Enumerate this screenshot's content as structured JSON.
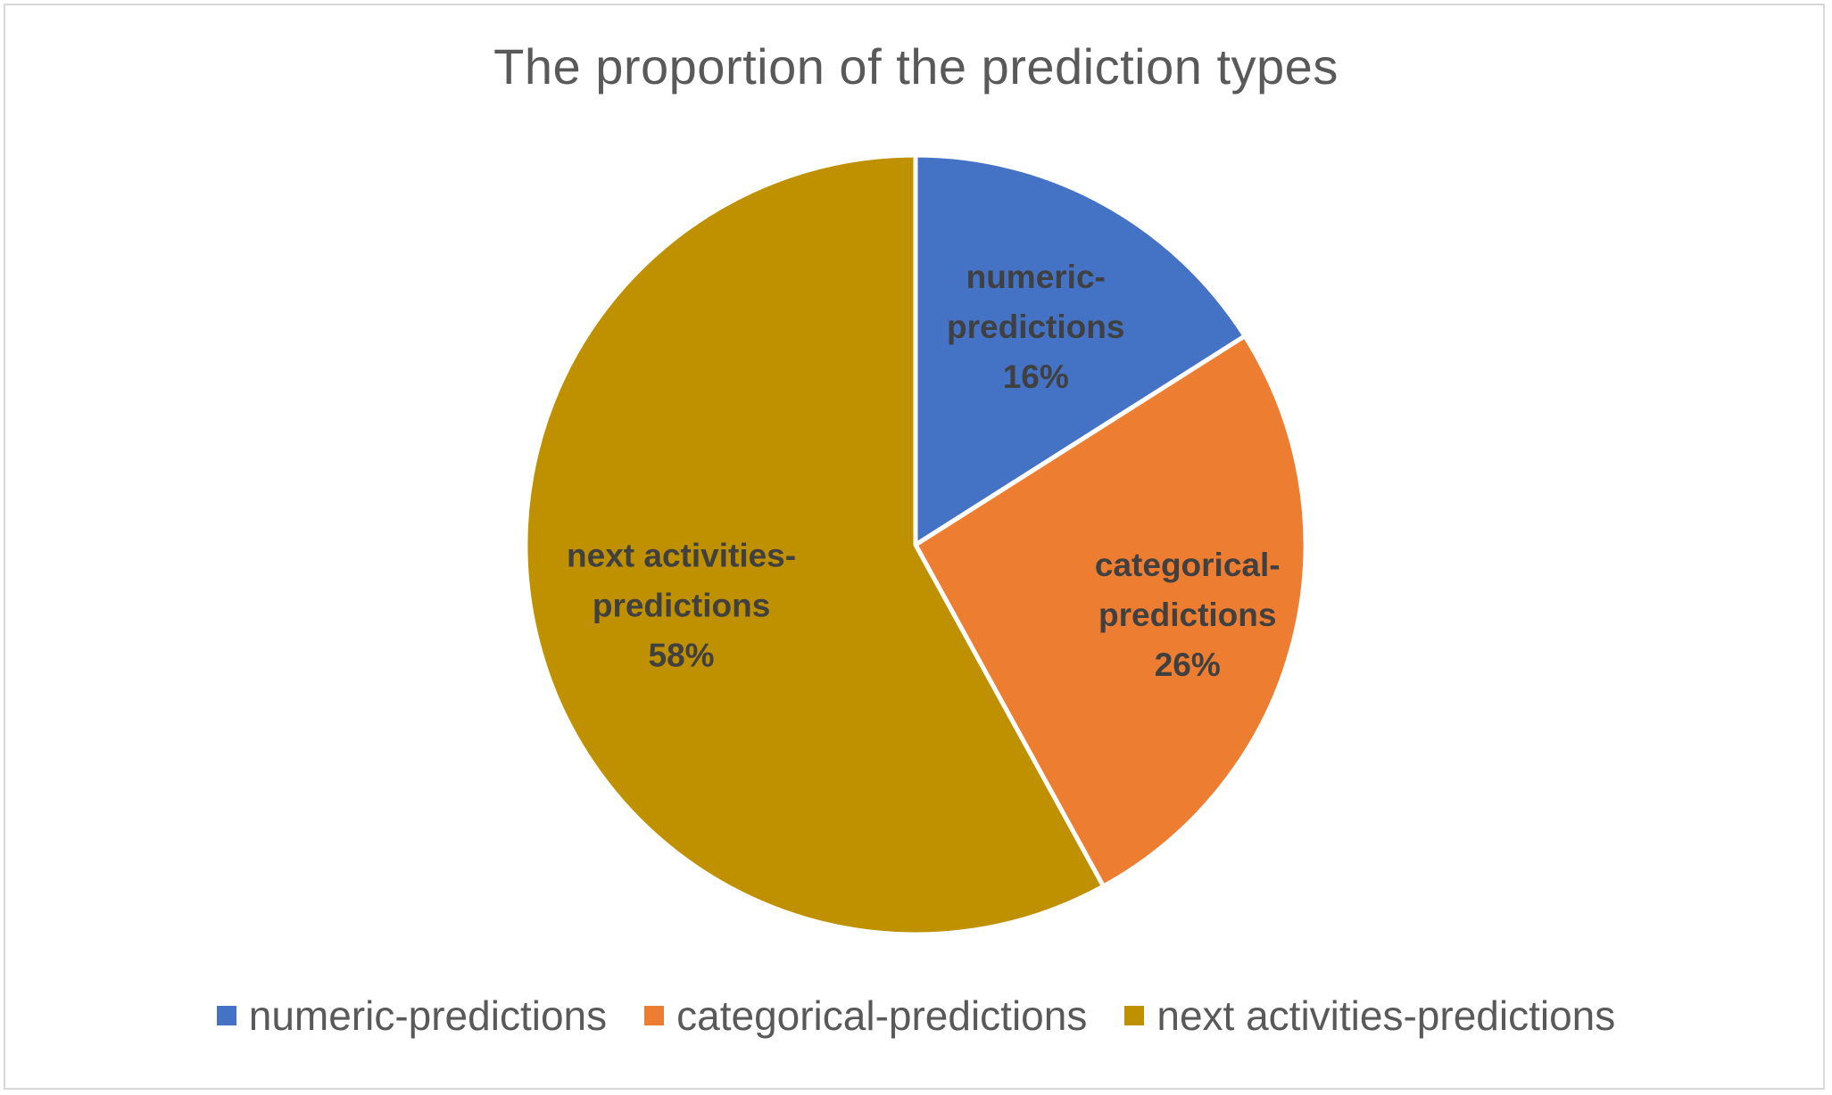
{
  "chart_data": {
    "type": "pie",
    "title": "The proportion of the prediction types",
    "categories": [
      "numeric-predictions",
      "categorical-predictions",
      "next activities-predictions"
    ],
    "values": [
      16,
      26,
      58
    ],
    "value_labels": [
      "16%",
      "26%",
      "58%"
    ],
    "slice_label_lines": [
      [
        "numeric-",
        "predictions",
        "16%"
      ],
      [
        "categorical-",
        "predictions",
        "26%"
      ],
      [
        "next activities-",
        "predictions",
        "58%"
      ]
    ],
    "colors": [
      "#4472C4",
      "#ED7D31",
      "#BF9000"
    ],
    "legend_position": "bottom",
    "start_angle": "top",
    "direction": "clockwise"
  }
}
